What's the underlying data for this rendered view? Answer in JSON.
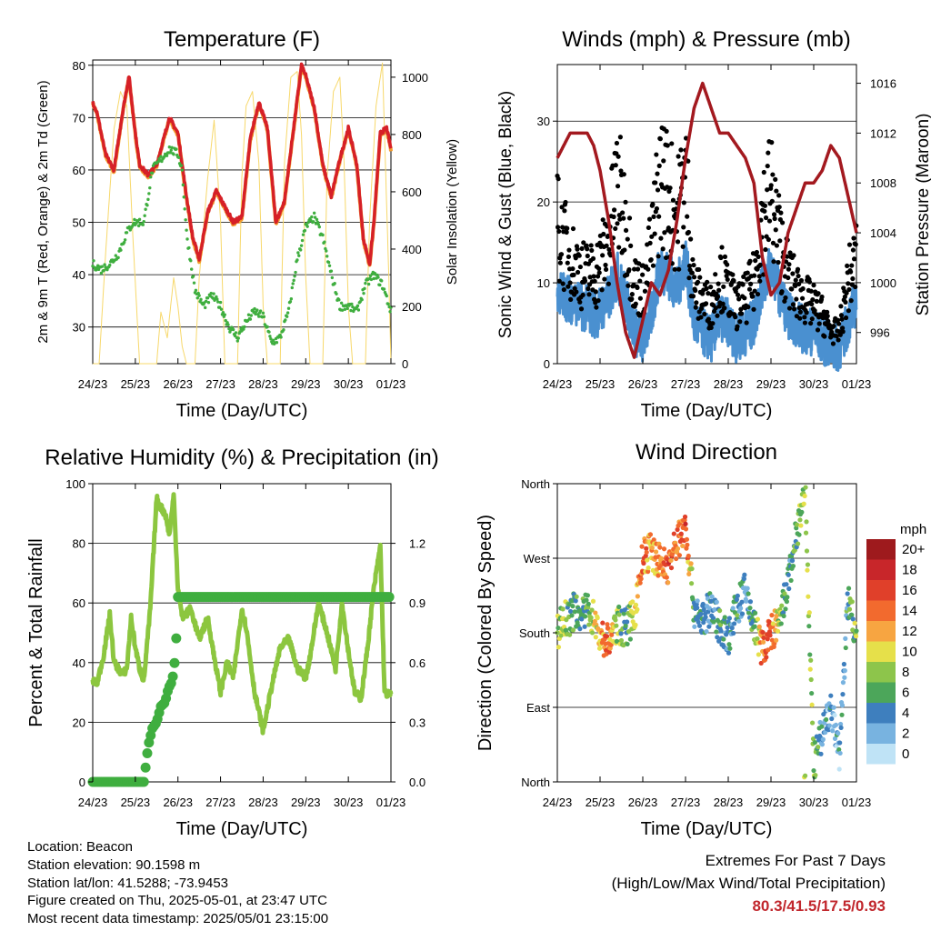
{
  "x_ticks": [
    "24/23",
    "25/23",
    "26/23",
    "27/23",
    "28/23",
    "29/23",
    "30/23",
    "01/23"
  ],
  "panels": {
    "temperature": {
      "title": "Temperature (F)",
      "xlabel": "Time (Day/UTC)",
      "ylabel_left": "2m & 9m T (Red, Orange) & 2m Td (Green)",
      "ylabel_right": "Solar Insolation (Yellow)",
      "yticks_left": [
        "30",
        "40",
        "50",
        "60",
        "70",
        "80"
      ],
      "yticks_right": [
        "0",
        "200",
        "400",
        "600",
        "800",
        "1000"
      ]
    },
    "winds": {
      "title": "Winds (mph) & Pressure (mb)",
      "xlabel": "Time (Day/UTC)",
      "ylabel_left": "Sonic Wind & Gust (Blue, Black)",
      "ylabel_right": "Station Pressure (Maroon)",
      "yticks_left": [
        "0",
        "10",
        "20",
        "30"
      ],
      "yticks_right": [
        "996",
        "1000",
        "1004",
        "1008",
        "1012",
        "1016"
      ]
    },
    "humidity": {
      "title": "Relative Humidity (%) & Precipitation (in)",
      "xlabel": "Time (Day/UTC)",
      "ylabel_left": "Percent & Total Rainfall",
      "yticks_left": [
        "0",
        "20",
        "40",
        "60",
        "80",
        "100"
      ],
      "yticks_right": [
        "0.0",
        "0.3",
        "0.6",
        "0.9",
        "1.2"
      ]
    },
    "direction": {
      "title": "Wind Direction",
      "xlabel": "Time (Day/UTC)",
      "ylabel_left": "Direction (Colored By Speed)",
      "yticks_left": [
        "North",
        "East",
        "South",
        "West",
        "North"
      ],
      "colorbar_title": "mph",
      "colorbar_labels": [
        "20+",
        "18",
        "16",
        "14",
        "12",
        "10",
        "8",
        "6",
        "4",
        "2",
        "0"
      ],
      "colorbar_colors": [
        "#9e1a1d",
        "#c8262a",
        "#e0402a",
        "#f26a2e",
        "#f7a541",
        "#e6e04a",
        "#8dc54b",
        "#4ca65a",
        "#3e7fbe",
        "#78b3e0",
        "#bfe3f6"
      ]
    }
  },
  "info": {
    "location": "Location: Beacon",
    "elevation": "Station elevation: 90.1598 m",
    "latlon": "Station lat/lon: 41.5288; -73.9453",
    "created": "Figure created on Thu, 2025-05-01, at 23:47 UTC",
    "recent": "Most recent data timestamp: 2025/05/01 23:15:00"
  },
  "extremes": {
    "line1": "Extremes For Past 7 Days",
    "line2": "(High/Low/Max Wind/Total Precipitation)",
    "values": "80.3/41.5/17.5/0.93"
  },
  "colors": {
    "temp_2m": "#d62027",
    "temp_9m": "#f39c2c",
    "dewpoint": "#3fae3f",
    "solar": "#f7d86b",
    "wind": "#4a90d0",
    "gust": "#000000",
    "pressure": "#a3191f",
    "rh": "#8cc63f",
    "precip": "#3fae3f"
  },
  "chart_data": [
    {
      "type": "line",
      "x": [
        "24/23",
        "25/23",
        "26/23",
        "27/23",
        "28/23",
        "29/23",
        "30/23",
        "01/23"
      ],
      "xlabel": "Time (Day/UTC)",
      "ylabel": "2m & 9m T (Red, Orange) & 2m Td (Green)",
      "ylim": [
        23,
        81
      ],
      "ylim_right": [
        0,
        1060
      ],
      "series": [
        {
          "axis": "left",
          "x": [
            0,
            0.1,
            0.3,
            0.5,
            0.7,
            0.85,
            1.0,
            1.1,
            1.3,
            1.5,
            1.6,
            1.8,
            2.0,
            2.2,
            2.35,
            2.5,
            2.7,
            2.9,
            3.1,
            3.3,
            3.5,
            3.7,
            3.9,
            4.1,
            4.3,
            4.5,
            4.7,
            4.9,
            5.0,
            5.2,
            5.4,
            5.6,
            5.8,
            6.0,
            6.2,
            6.35,
            6.5,
            6.6,
            6.75,
            6.9,
            7.0
          ],
          "values": [
            73,
            71,
            63,
            60,
            71,
            78,
            67,
            61,
            59,
            61,
            64,
            70,
            67,
            55,
            47,
            43,
            52,
            56,
            53,
            50,
            51,
            66,
            73,
            68,
            50,
            54,
            67,
            80,
            78,
            72,
            61,
            55,
            62,
            68,
            61,
            47,
            42,
            50,
            67,
            68,
            64
          ]
        },
        {
          "axis": "left",
          "x": [
            0,
            0.2,
            0.4,
            0.6,
            0.8,
            0.95,
            1.2,
            1.4,
            1.6,
            1.8,
            2.0,
            2.1,
            2.2,
            2.4,
            2.6,
            2.8,
            3.0,
            3.2,
            3.4,
            3.6,
            3.8,
            4.0,
            4.2,
            4.4,
            4.6,
            4.8,
            5.0,
            5.2,
            5.4,
            5.6,
            5.8,
            6.0,
            6.2,
            6.4,
            6.6,
            6.8,
            7.0
          ],
          "values": [
            42,
            41,
            42,
            44,
            48,
            50,
            50,
            60,
            62,
            64,
            63,
            60,
            48,
            37,
            34,
            36,
            34,
            30,
            28,
            31,
            33,
            32,
            27,
            28,
            33,
            43,
            49,
            51,
            47,
            40,
            34,
            34,
            33,
            38,
            40,
            38,
            33
          ]
        },
        {
          "axis": "right",
          "x": [
            0,
            0.15,
            0.3,
            0.5,
            0.65,
            0.8,
            0.95,
            1.1,
            1.5,
            1.6,
            1.75,
            1.9,
            2.0,
            2.1,
            2.2,
            2.4,
            2.5,
            2.7,
            2.85,
            3.0,
            3.1,
            3.4,
            3.5,
            3.6,
            3.75,
            3.9,
            4.0,
            4.1,
            4.4,
            4.5,
            4.65,
            4.8,
            4.9,
            5.0,
            5.1,
            5.4,
            5.5,
            5.65,
            5.8,
            5.9,
            6.0,
            6.1,
            6.4,
            6.5,
            6.65,
            6.8,
            6.95,
            7.0
          ],
          "values": [
            0,
            0,
            380,
            820,
            950,
            900,
            420,
            0,
            0,
            180,
            90,
            300,
            200,
            60,
            0,
            0,
            300,
            650,
            850,
            500,
            0,
            0,
            650,
            900,
            950,
            700,
            200,
            0,
            0,
            700,
            1000,
            1020,
            800,
            300,
            0,
            0,
            650,
            950,
            1000,
            700,
            200,
            0,
            0,
            500,
            900,
            1050,
            300,
            0
          ]
        }
      ]
    },
    {
      "type": "line",
      "x": [
        "24/23",
        "25/23",
        "26/23",
        "27/23",
        "28/23",
        "29/23",
        "30/23",
        "01/23"
      ],
      "xlabel": "Time (Day/UTC)",
      "ylabel": "Sonic Wind & Gust (Blue, Black)",
      "ylim": [
        0,
        37
      ],
      "ylim_right": [
        993.5,
        1017.5
      ],
      "series": [
        {
          "axis": "left",
          "x": [
            0,
            0.3,
            0.6,
            0.9,
            1.2,
            1.4,
            1.6,
            1.8,
            2.0,
            2.2,
            2.4,
            2.6,
            2.8,
            3.0,
            3.2,
            3.4,
            3.6,
            3.8,
            4.0,
            4.2,
            4.4,
            4.6,
            4.8,
            5.0,
            5.2,
            5.4,
            5.6,
            5.8,
            6.0,
            6.2,
            6.4,
            6.6,
            6.8,
            7.0
          ],
          "values": [
            9,
            8,
            7,
            6,
            8,
            11,
            8,
            4,
            3,
            6,
            12,
            11,
            9,
            13,
            5,
            4,
            3,
            6,
            5,
            3,
            4,
            5,
            10,
            12,
            9,
            6,
            5,
            4,
            4,
            3,
            2,
            2,
            5,
            8
          ]
        },
        {
          "axis": "left",
          "x": [
            0,
            0.3,
            0.6,
            0.9,
            1.2,
            1.4,
            1.6,
            1.8,
            2.0,
            2.2,
            2.4,
            2.6,
            2.8,
            3.0,
            3.2,
            3.4,
            3.6,
            3.8,
            4.0,
            4.2,
            4.4,
            4.6,
            4.8,
            5.0,
            5.2,
            5.4,
            5.6,
            5.8,
            6.0,
            6.2,
            6.4,
            6.6,
            6.8,
            7.0
          ],
          "values": [
            17,
            13,
            11,
            11,
            15,
            22,
            17,
            10,
            9,
            14,
            23,
            21,
            18,
            23,
            9,
            8,
            7,
            11,
            9,
            7,
            8,
            10,
            18,
            21,
            15,
            11,
            9,
            8,
            7,
            6,
            4,
            4,
            10,
            13
          ]
        },
        {
          "axis": "right",
          "x": [
            0,
            0.15,
            0.3,
            0.5,
            0.7,
            0.85,
            1.0,
            1.2,
            1.4,
            1.6,
            1.8,
            2.0,
            2.2,
            2.4,
            2.6,
            2.8,
            3.0,
            3.2,
            3.4,
            3.6,
            3.8,
            4.0,
            4.2,
            4.4,
            4.6,
            4.8,
            5.0,
            5.2,
            5.4,
            5.6,
            5.8,
            6.0,
            6.2,
            6.4,
            6.6,
            6.8,
            7.0
          ],
          "values": [
            1010,
            1011,
            1012,
            1012,
            1012,
            1011,
            1009,
            1005,
            1000,
            996,
            994,
            997,
            1000,
            999,
            1001,
            1005,
            1010,
            1014,
            1016,
            1014,
            1012,
            1012,
            1011,
            1010,
            1008,
            1002,
            999,
            1000,
            1004,
            1006,
            1008,
            1008,
            1009,
            1011,
            1010,
            1007,
            1004
          ]
        }
      ]
    },
    {
      "type": "line",
      "x": [
        "24/23",
        "25/23",
        "26/23",
        "27/23",
        "28/23",
        "29/23",
        "30/23",
        "01/23"
      ],
      "xlabel": "Time (Day/UTC)",
      "ylabel": "Percent & Total Rainfall",
      "ylim": [
        0,
        100
      ],
      "ylim_right": [
        0,
        1.5
      ],
      "series": [
        {
          "axis": "left",
          "x": [
            0,
            0.1,
            0.25,
            0.4,
            0.5,
            0.6,
            0.7,
            0.8,
            0.9,
            1.0,
            1.1,
            1.2,
            1.35,
            1.5,
            1.6,
            1.7,
            1.8,
            1.9,
            2.0,
            2.1,
            2.3,
            2.5,
            2.7,
            2.85,
            3.0,
            3.15,
            3.3,
            3.5,
            3.6,
            3.8,
            4.0,
            4.2,
            4.4,
            4.6,
            4.8,
            5.0,
            5.1,
            5.3,
            5.5,
            5.7,
            5.85,
            6.0,
            6.15,
            6.3,
            6.45,
            6.6,
            6.75,
            6.85,
            7.0
          ],
          "values": [
            34,
            33,
            42,
            56,
            40,
            38,
            36,
            38,
            55,
            45,
            38,
            34,
            58,
            95,
            92,
            90,
            83,
            96,
            65,
            55,
            58,
            48,
            55,
            42,
            30,
            40,
            35,
            58,
            52,
            30,
            17,
            32,
            45,
            48,
            38,
            35,
            42,
            60,
            50,
            38,
            60,
            44,
            30,
            28,
            45,
            65,
            79,
            30,
            29
          ]
        },
        {
          "axis": "right",
          "x": [
            0,
            0.4,
            0.8,
            1.2,
            1.3,
            1.4,
            1.5,
            1.6,
            1.7,
            1.75,
            1.8,
            1.85,
            1.9,
            1.95,
            2.0,
            2.5,
            3.0,
            3.5,
            4.0,
            4.5,
            5.0,
            5.5,
            6.0,
            6.5,
            7.0
          ],
          "values": [
            0,
            0,
            0,
            0,
            0.18,
            0.27,
            0.3,
            0.38,
            0.4,
            0.45,
            0.48,
            0.5,
            0.55,
            0.67,
            0.93,
            0.93,
            0.93,
            0.93,
            0.93,
            0.93,
            0.93,
            0.93,
            0.93,
            0.93,
            0.93
          ]
        }
      ]
    },
    {
      "type": "scatter",
      "x": [
        "24/23",
        "25/23",
        "26/23",
        "27/23",
        "28/23",
        "29/23",
        "30/23",
        "01/23"
      ],
      "xlabel": "Time (Day/UTC)",
      "ylabel": "Direction (Colored By Speed)",
      "ylim": [
        0,
        360
      ],
      "series": [
        {
          "name": "direction",
          "x": [
            0,
            0.15,
            0.3,
            0.45,
            0.6,
            0.75,
            0.9,
            1.0,
            1.2,
            1.4,
            1.6,
            1.8,
            2.0,
            2.2,
            2.4,
            2.6,
            2.8,
            3.0,
            3.2,
            3.4,
            3.6,
            3.8,
            4.0,
            4.2,
            4.4,
            4.6,
            4.8,
            5.0,
            5.2,
            5.4,
            5.6,
            5.8,
            6.0,
            6.2,
            6.4,
            6.6,
            6.8,
            7.0
          ],
          "values": [
            180,
            195,
            200,
            210,
            200,
            210,
            190,
            175,
            170,
            190,
            185,
            200,
            270,
            280,
            265,
            260,
            290,
            310,
            210,
            195,
            210,
            190,
            175,
            210,
            230,
            190,
            160,
            180,
            190,
            240,
            300,
            350,
            20,
            60,
            90,
            30,
            220,
            180
          ],
          "speed": [
            9,
            8,
            6,
            5,
            6,
            7,
            10,
            12,
            14,
            8,
            5,
            10,
            14,
            12,
            13,
            15,
            13,
            16,
            5,
            4,
            3,
            6,
            4,
            5,
            3,
            6,
            14,
            15,
            8,
            4,
            6,
            9,
            7,
            4,
            3,
            3,
            5,
            8
          ]
        }
      ]
    }
  ]
}
